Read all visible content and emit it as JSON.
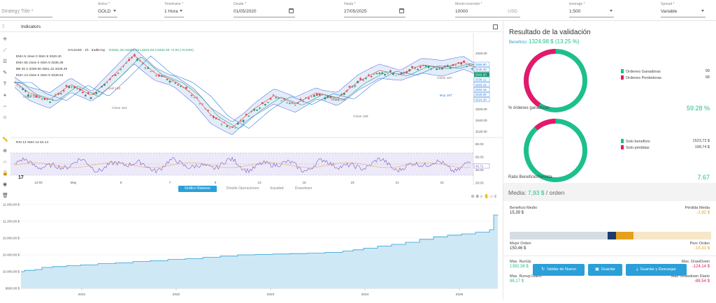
{
  "top": {
    "strategy_placeholder": "Strategy Title *",
    "fields": [
      {
        "label": "Activo *",
        "value": "GOLD",
        "control": "select"
      },
      {
        "label": "Timeframe *",
        "value": "1 Hora",
        "control": "select"
      },
      {
        "label": "Desde *",
        "value": "01/05/2020",
        "control": "date"
      },
      {
        "label": "Hasta *",
        "value": "27/05/2025",
        "control": "date"
      },
      {
        "label": "Monto inversión *",
        "value": "10000",
        "unit": "USD",
        "control": "number"
      },
      {
        "label": "leverage *",
        "value": "1:500",
        "control": "select"
      },
      {
        "label": "Spread *",
        "value": "Variable",
        "control": "select"
      }
    ]
  },
  "tv": {
    "indicators_label": "Indicators",
    "symbol": "XAUUSD · 1h · tradEAsy",
    "ohlc": "O3341.26 H3343.19 L3341.03 C3342.30 +1.04 (+0.03%)",
    "legend_lines": [
      {
        "text": "EMA 5 close 0 SMA 9  3340.40",
        "color": "#333"
      },
      {
        "text": "EMA 55 close 0 SMA 9  3335.39",
        "color": "#333"
      },
      {
        "text": "BB 20 2  3339.96  3351.42  3328.49",
        "color": "#333"
      },
      {
        "text": "EMA 13 close 0 SMA 9  3339.54",
        "color": "#333"
      }
    ],
    "rsi_label": "RSI 14 SMA 14  54.14",
    "price_axis": [
      "3400.00",
      "3360.00",
      "3320.00",
      "3280.00",
      "3240.00",
      "3200.00",
      "3160.00",
      "3120.00"
    ],
    "price_tags": [
      {
        "text": "3366.80",
        "color": "#2b7de0",
        "fill": "#fff"
      },
      {
        "text": "3346.48",
        "color": "#2b7de0",
        "fill": "#fff"
      },
      {
        "text": "3342.30",
        "color": "#fff",
        "fill": "#1a9a6e"
      },
      {
        "text": "3338.12",
        "color": "#2b7de0",
        "fill": "#fff"
      },
      {
        "text": "3334.15",
        "color": "#2b7de0",
        "fill": "#fff"
      },
      {
        "text": "3334.16",
        "color": "#2b7de0",
        "fill": "#fff"
      },
      {
        "text": "3328.05",
        "color": "#2b7de0",
        "fill": "#fff"
      },
      {
        "text": "3324.30",
        "color": "#2b7de0",
        "fill": "#fff"
      }
    ],
    "rsi_axis": [
      "80.00",
      "60.00",
      "40.00",
      "20.00"
    ],
    "rsi_tag": "45.71",
    "time_axis": [
      "12:00",
      "May",
      "5",
      "7",
      "9",
      "13",
      "15",
      "19",
      "21",
      "23"
    ],
    "annotations": [
      "Close 161",
      "Sell 163",
      "Close 163",
      "Close 165",
      "Close 166",
      "Close 167",
      "Buy 167"
    ],
    "tabs": [
      "Gráfico Balance",
      "Detalle Operaciones",
      "Equidad",
      "Drawdown"
    ],
    "active_tab": "Gráfico Balance"
  },
  "balance": {
    "y_ticks": [
      "11.600,00 $",
      "11.200,00 $",
      "10.800,00 $",
      "10.400,00 $",
      "10.000,00 $",
      "9600,00 $"
    ],
    "x_ticks": [
      "2021",
      "2022",
      "2023",
      "2024",
      "2025"
    ],
    "fill_color": "#cfe8f5",
    "line_color": "#2b9fd8"
  },
  "results": {
    "title": "Resultado de la validación",
    "beneficio_label": "Beneficio:",
    "beneficio_value": "1324,98 $ (13.25 %)",
    "donut1": {
      "legend": [
        {
          "label": "Ordenes Ganadoras",
          "value": "99",
          "color": "#1dbf8c"
        },
        {
          "label": "Ordenes Perdedoras",
          "value": "68",
          "color": "#e4196b"
        }
      ],
      "pct_label": "% órdenes ganadoras",
      "pct_value": "59.28 %"
    },
    "donut2": {
      "legend": [
        {
          "label": "Solo beneficio",
          "value": "1523,73 $",
          "color": "#1dbf8c"
        },
        {
          "label": "Solo pérdidas",
          "value": "198,74 $",
          "color": "#e4196b"
        }
      ],
      "ratio_label": "Ratio Beneficio/Pérdida",
      "ratio_value": "7.67"
    },
    "media_label": "Media:",
    "media_value": "7,93 $",
    "media_suffix": "/ orden",
    "beneficio_medio_label": "Beneficio Medio",
    "beneficio_medio_value": "15,39 $",
    "perdida_media_label": "Pérdida Media",
    "perdida_media_value": "-2,92 $",
    "mejor_orden_label": "Mejor Orden",
    "mejor_orden_value": "150,46 $",
    "peor_orden_label": "Peor Orden",
    "peor_orden_value": "-15,33 $",
    "max_runup_label": "Max. RunUp",
    "max_runup_value": "1392,38 $",
    "max_drawdown_label": "Max. DrawDown",
    "max_drawdown_value": "-124,14 $",
    "max_runup_diario_label": "Max. Runup Diario",
    "max_runup_diario_value": "88,17 $",
    "max_drawdown_diario_label": "Max. Drawdown Diario",
    "max_drawdown_diario_value": "-88,54 $",
    "buttons": [
      "Validar de Nuevo",
      "Guardar",
      "Guardar y Descargar"
    ]
  },
  "colors": {
    "accent": "#2b9fd8",
    "green": "#1dbf8c",
    "red": "#e4196b",
    "orange": "#e4a11b",
    "navy": "#1d3b6e"
  }
}
